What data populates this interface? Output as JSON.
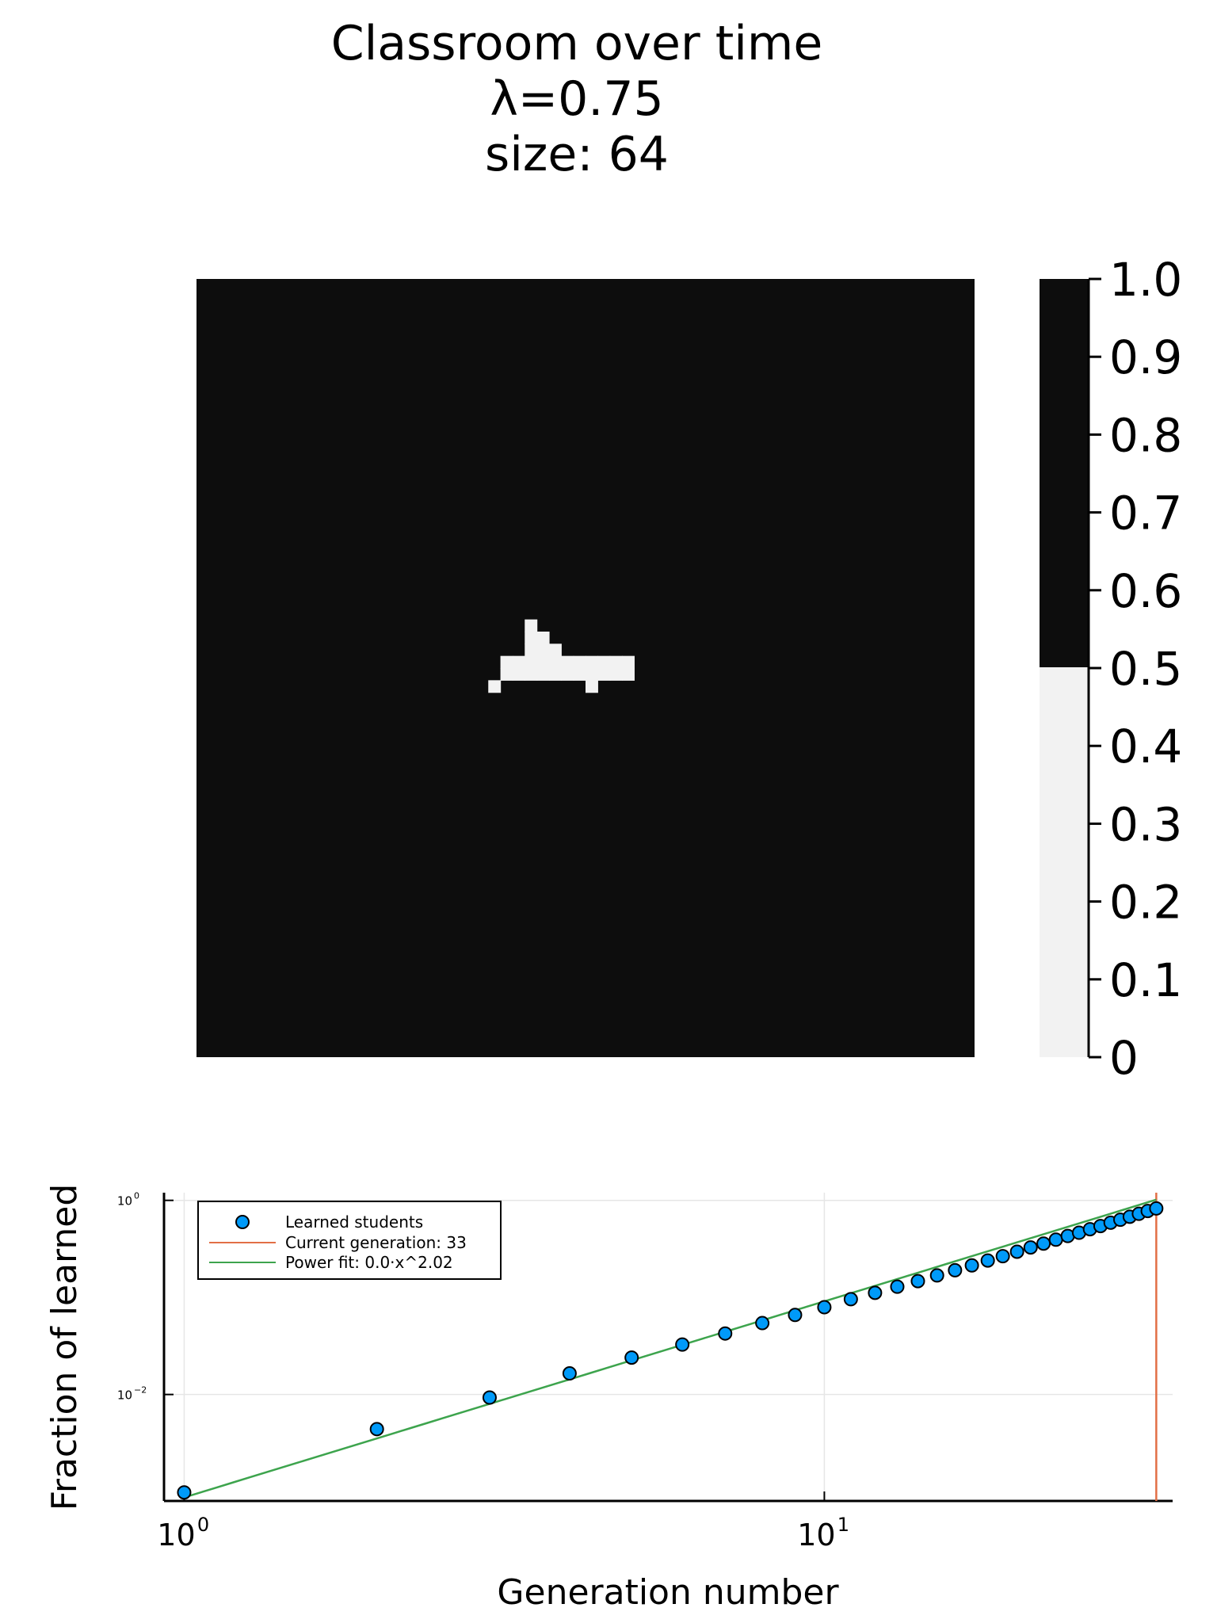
{
  "chart_data": [
    {
      "type": "heatmap",
      "title_lines": [
        "Classroom over time",
        "λ=0.75",
        "size: 64"
      ],
      "grid_size": 64,
      "values_description_skip": null,
      "background_value": 1,
      "learned_cells_value": 0,
      "learned_cells": [
        [
          27,
          28
        ],
        [
          27,
          29
        ],
        [
          28,
          29
        ],
        [
          27,
          30
        ],
        [
          28,
          30
        ],
        [
          29,
          30
        ],
        [
          25,
          31
        ],
        [
          26,
          31
        ],
        [
          27,
          31
        ],
        [
          28,
          31
        ],
        [
          29,
          31
        ],
        [
          30,
          31
        ],
        [
          31,
          31
        ],
        [
          32,
          31
        ],
        [
          33,
          31
        ],
        [
          34,
          31
        ],
        [
          35,
          31
        ],
        [
          25,
          32
        ],
        [
          26,
          32
        ],
        [
          27,
          32
        ],
        [
          28,
          32
        ],
        [
          29,
          32
        ],
        [
          30,
          32
        ],
        [
          31,
          32
        ],
        [
          32,
          32
        ],
        [
          33,
          32
        ],
        [
          34,
          32
        ],
        [
          35,
          32
        ],
        [
          24,
          33
        ],
        [
          32,
          33
        ]
      ],
      "colorbar": {
        "ticks": [
          "1.0",
          "0.9",
          "0.8",
          "0.7",
          "0.6",
          "0.5",
          "0.4",
          "0.3",
          "0.2",
          "0.1",
          "0"
        ],
        "range": [
          0,
          1
        ],
        "levels": [
          {
            "from": 0,
            "to": 0.5,
            "color": "#f2f2f2"
          },
          {
            "from": 0.5,
            "to": 1.0,
            "color": "#0d0d0d"
          }
        ]
      }
    },
    {
      "type": "scatter",
      "xlabel": "Generation number",
      "ylabel": "Fraction of learned",
      "xscale": "log",
      "yscale": "log",
      "xlim": [
        0.93,
        35
      ],
      "ylim": [
        0.0008,
        1.2
      ],
      "x_ticks": [
        {
          "base": "10",
          "exp": "0",
          "value": 1
        },
        {
          "base": "10",
          "exp": "1",
          "value": 10
        }
      ],
      "y_ticks": [
        {
          "base": "10",
          "exp": "0",
          "value": 1
        },
        {
          "base": "10",
          "exp": "−2",
          "value": 0.01
        }
      ],
      "grid": true,
      "legend_position": "top-left",
      "series": [
        {
          "name": "Learned students",
          "kind": "scatter",
          "color": "#009af9",
          "x": [
            1,
            2,
            3,
            4,
            5,
            6,
            7,
            8,
            9,
            10,
            11,
            12,
            13,
            14,
            15,
            16,
            17,
            18,
            19,
            20,
            21,
            22,
            23,
            24,
            25,
            26,
            27,
            28,
            29,
            30,
            31,
            32,
            33
          ],
          "y": [
            0.00098,
            0.0044,
            0.0093,
            0.0165,
            0.024,
            0.0327,
            0.0425,
            0.0544,
            0.066,
            0.0793,
            0.0959,
            0.1116,
            0.129,
            0.1472,
            0.1685,
            0.1905,
            0.2137,
            0.2401,
            0.2661,
            0.2959,
            0.3274,
            0.3589,
            0.3938,
            0.4297,
            0.4639,
            0.5044,
            0.5437,
            0.5889,
            0.6318,
            0.6783,
            0.7268,
            0.7771,
            0.8252
          ]
        },
        {
          "name": "Current generation: 33",
          "kind": "vline",
          "color": "#e26f46",
          "x": 33
        },
        {
          "name": "Power fit: 0.0·x^2.02",
          "kind": "line",
          "color": "#3da44d",
          "coef": 0.00087,
          "exponent": 2.02,
          "x_range": [
            1,
            33
          ]
        }
      ]
    }
  ]
}
